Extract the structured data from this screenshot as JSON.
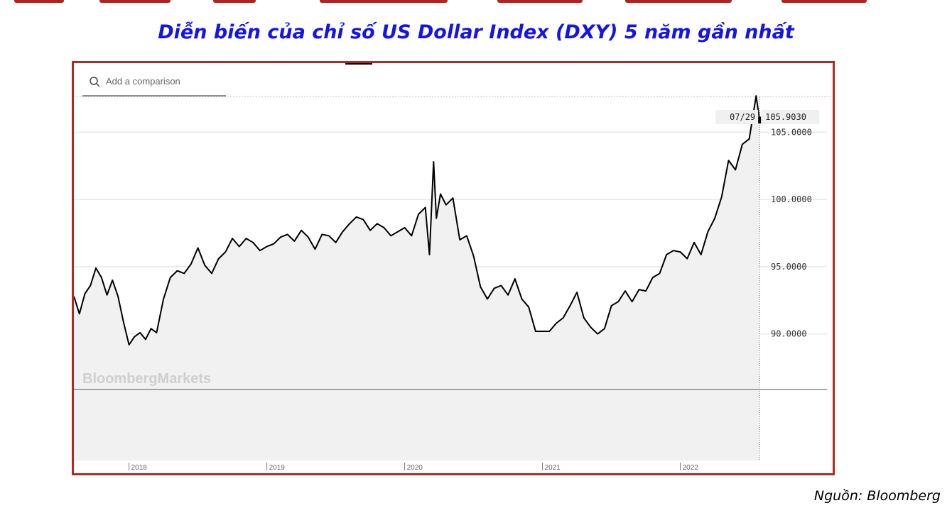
{
  "title": "Diễn biến của chỉ số US Dollar Index (DXY) 5 năm gần nhất",
  "source": "Nguồn: Bloomberg",
  "search": {
    "placeholder": "Add a comparison",
    "icon": "search-icon"
  },
  "watermark": "BloombergMarkets",
  "colors": {
    "title": "#1414e8",
    "frame": "#b02a22",
    "line": "#000000",
    "area": "#f1f1f1",
    "grid": "#dddddd"
  },
  "chart_data": {
    "type": "line",
    "title": "",
    "xlabel": "",
    "ylabel": "",
    "ylim": [
      80.6,
      107.6
    ],
    "xlim": [
      2017.6,
      2022.6
    ],
    "grid": true,
    "legend": "none",
    "y_ticks": [
      {
        "value": 105,
        "label": "105.0000"
      },
      {
        "value": 100,
        "label": "100.0000"
      },
      {
        "value": 95,
        "label": "95.0000"
      },
      {
        "value": 90,
        "label": "90.0000"
      }
    ],
    "x_ticks": [
      {
        "value": 2018,
        "label": "2018"
      },
      {
        "value": 2019,
        "label": "2019"
      },
      {
        "value": 2020,
        "label": "2020"
      },
      {
        "value": 2021,
        "label": "2021"
      },
      {
        "value": 2022,
        "label": "2022"
      }
    ],
    "last_point": {
      "date_label": "07/29",
      "value_label": "105.9030",
      "x": 2022.575,
      "y": 105.9
    },
    "series": [
      {
        "x": [
          2017.6,
          2017.64,
          2017.68,
          2017.72,
          2017.76,
          2017.8,
          2017.84,
          2017.88,
          2017.92,
          2017.96,
          2018.0,
          2018.04,
          2018.08,
          2018.12,
          2018.16,
          2018.2,
          2018.25,
          2018.3,
          2018.35,
          2018.4,
          2018.45,
          2018.5,
          2018.55,
          2018.6,
          2018.65,
          2018.7,
          2018.75,
          2018.8,
          2018.85,
          2018.9,
          2018.95,
          2019.0,
          2019.05,
          2019.1,
          2019.15,
          2019.2,
          2019.25,
          2019.3,
          2019.35,
          2019.4,
          2019.45,
          2019.5,
          2019.55,
          2019.6,
          2019.65,
          2019.7,
          2019.75,
          2019.8,
          2019.85,
          2019.9,
          2019.95,
          2020.0,
          2020.05,
          2020.1,
          2020.15,
          2020.18,
          2020.21,
          2020.23,
          2020.26,
          2020.3,
          2020.35,
          2020.4,
          2020.45,
          2020.5,
          2020.55,
          2020.6,
          2020.65,
          2020.7,
          2020.75,
          2020.8,
          2020.85,
          2020.9,
          2020.95,
          2021.0,
          2021.05,
          2021.1,
          2021.15,
          2021.2,
          2021.25,
          2021.3,
          2021.35,
          2021.4,
          2021.45,
          2021.5,
          2021.55,
          2021.6,
          2021.65,
          2021.7,
          2021.75,
          2021.8,
          2021.85,
          2021.9,
          2021.95,
          2022.0,
          2022.05,
          2022.1,
          2022.15,
          2022.2,
          2022.25,
          2022.3,
          2022.35,
          2022.4,
          2022.45,
          2022.5,
          2022.55,
          2022.575
        ],
        "y": [
          92.8,
          91.5,
          93.0,
          93.6,
          94.9,
          94.2,
          92.9,
          94.0,
          92.8,
          90.9,
          89.2,
          89.8,
          90.1,
          89.6,
          90.4,
          90.1,
          92.6,
          94.2,
          94.7,
          94.5,
          95.2,
          96.4,
          95.1,
          94.5,
          95.6,
          96.1,
          97.1,
          96.5,
          97.1,
          96.8,
          96.2,
          96.5,
          96.7,
          97.2,
          97.4,
          96.9,
          97.7,
          97.2,
          96.3,
          97.4,
          97.3,
          96.8,
          97.6,
          98.2,
          98.7,
          98.5,
          97.7,
          98.2,
          97.9,
          97.3,
          97.6,
          97.9,
          97.3,
          98.9,
          99.4,
          95.9,
          102.8,
          98.6,
          100.4,
          99.6,
          100.1,
          97.0,
          97.3,
          95.8,
          93.5,
          92.6,
          93.4,
          93.6,
          92.9,
          94.1,
          92.6,
          92.0,
          90.2,
          90.2,
          90.2,
          90.8,
          91.2,
          92.1,
          93.1,
          91.2,
          90.5,
          90.0,
          90.4,
          92.1,
          92.4,
          93.2,
          92.4,
          93.3,
          93.2,
          94.2,
          94.5,
          95.9,
          96.2,
          96.1,
          95.6,
          96.8,
          95.9,
          97.6,
          98.6,
          100.2,
          102.9,
          102.2,
          104.1,
          104.5,
          107.7,
          105.9
        ]
      }
    ]
  }
}
